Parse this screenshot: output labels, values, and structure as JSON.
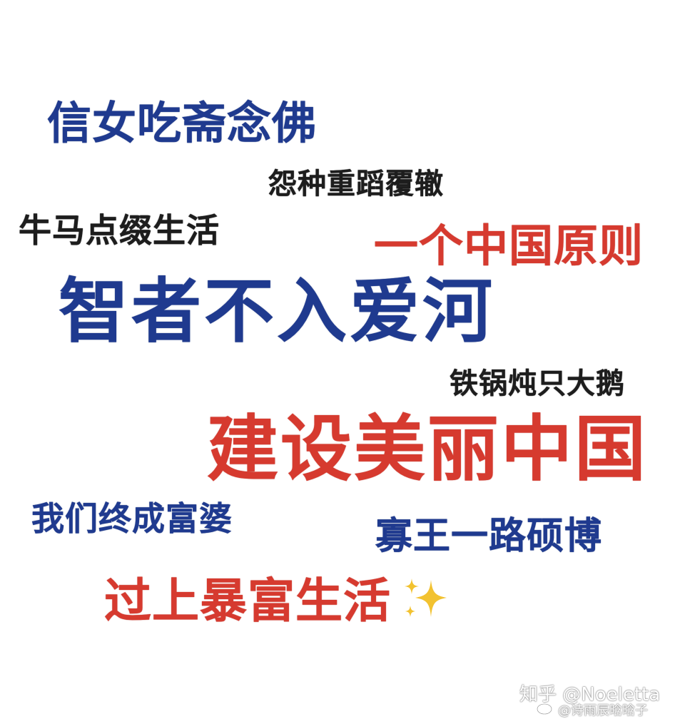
{
  "phrases": {
    "p1": "信女吃斋念佛",
    "p2": "怨种重蹈覆辙",
    "p3": "牛马点缀生活",
    "p4": "一个中国原则",
    "p5": "智者不入爱河",
    "p6": "铁锅炖只大鹅",
    "p7": "建设美丽中国",
    "p8": "我们终成富婆",
    "p9": "寡王一路硕博",
    "p10": "过上暴富生活"
  },
  "watermarks": {
    "zhihu": "知乎 @Noeletta",
    "weibo": "@诗雨辰晗晗子"
  },
  "colors": {
    "blue": "#1f3a8f",
    "red": "#d63a2f",
    "black": "#1d1d1d",
    "sparkle": "#f2c230"
  },
  "icons": {
    "sparkle": "sparkles-emoji-icon",
    "weibo": "weibo-logo-icon"
  }
}
